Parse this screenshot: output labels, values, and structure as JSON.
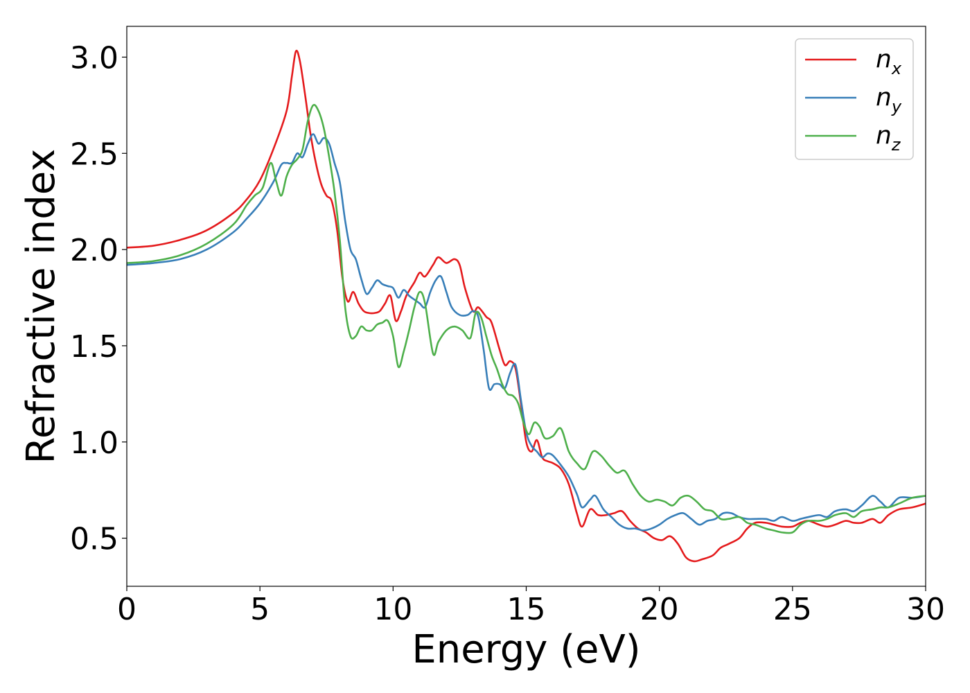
{
  "chart_data": {
    "type": "line",
    "xlabel": "Energy (eV)",
    "ylabel": "Refractive index",
    "xlim": [
      0,
      30
    ],
    "ylim": [
      0.25,
      3.16
    ],
    "xticks": [
      0,
      5,
      10,
      15,
      20,
      25,
      30
    ],
    "xtick_labels": [
      "0",
      "5",
      "10",
      "15",
      "20",
      "25",
      "30"
    ],
    "yticks": [
      0.5,
      1.0,
      1.5,
      2.0,
      2.5,
      3.0
    ],
    "ytick_labels": [
      "0.5",
      "1.0",
      "1.5",
      "2.0",
      "2.5",
      "3.0"
    ],
    "grid": false,
    "legend_position": "top-right",
    "series": [
      {
        "name": "n",
        "subscript": "x",
        "color": "#e41a1c",
        "points": [
          [
            0,
            2.01
          ],
          [
            1,
            2.02
          ],
          [
            2,
            2.05
          ],
          [
            3,
            2.1
          ],
          [
            4,
            2.19
          ],
          [
            4.5,
            2.26
          ],
          [
            5,
            2.36
          ],
          [
            5.5,
            2.52
          ],
          [
            6,
            2.72
          ],
          [
            6.2,
            2.9
          ],
          [
            6.35,
            3.03
          ],
          [
            6.5,
            2.98
          ],
          [
            6.7,
            2.8
          ],
          [
            6.9,
            2.6
          ],
          [
            7.1,
            2.45
          ],
          [
            7.3,
            2.34
          ],
          [
            7.5,
            2.28
          ],
          [
            7.7,
            2.25
          ],
          [
            7.9,
            2.1
          ],
          [
            8.1,
            1.85
          ],
          [
            8.3,
            1.73
          ],
          [
            8.5,
            1.78
          ],
          [
            8.7,
            1.72
          ],
          [
            8.9,
            1.68
          ],
          [
            9.1,
            1.67
          ],
          [
            9.3,
            1.67
          ],
          [
            9.5,
            1.68
          ],
          [
            9.7,
            1.72
          ],
          [
            9.9,
            1.76
          ],
          [
            10.1,
            1.63
          ],
          [
            10.3,
            1.68
          ],
          [
            10.5,
            1.76
          ],
          [
            10.8,
            1.83
          ],
          [
            11.0,
            1.88
          ],
          [
            11.2,
            1.86
          ],
          [
            11.5,
            1.92
          ],
          [
            11.7,
            1.96
          ],
          [
            12.0,
            1.93
          ],
          [
            12.3,
            1.95
          ],
          [
            12.5,
            1.92
          ],
          [
            12.7,
            1.8
          ],
          [
            13.0,
            1.68
          ],
          [
            13.2,
            1.7
          ],
          [
            13.5,
            1.65
          ],
          [
            13.7,
            1.62
          ],
          [
            14.0,
            1.48
          ],
          [
            14.2,
            1.4
          ],
          [
            14.4,
            1.42
          ],
          [
            14.6,
            1.38
          ],
          [
            14.8,
            1.2
          ],
          [
            15.0,
            1.0
          ],
          [
            15.2,
            0.95
          ],
          [
            15.4,
            1.01
          ],
          [
            15.6,
            0.92
          ],
          [
            15.8,
            0.9
          ],
          [
            16.0,
            0.89
          ],
          [
            16.3,
            0.86
          ],
          [
            16.6,
            0.78
          ],
          [
            16.9,
            0.63
          ],
          [
            17.1,
            0.56
          ],
          [
            17.4,
            0.65
          ],
          [
            17.7,
            0.62
          ],
          [
            18.0,
            0.62
          ],
          [
            18.3,
            0.63
          ],
          [
            18.6,
            0.64
          ],
          [
            18.9,
            0.59
          ],
          [
            19.2,
            0.55
          ],
          [
            19.5,
            0.53
          ],
          [
            19.8,
            0.5
          ],
          [
            20.1,
            0.49
          ],
          [
            20.4,
            0.51
          ],
          [
            20.7,
            0.47
          ],
          [
            21.0,
            0.4
          ],
          [
            21.3,
            0.38
          ],
          [
            21.6,
            0.39
          ],
          [
            22.0,
            0.41
          ],
          [
            22.3,
            0.45
          ],
          [
            22.6,
            0.47
          ],
          [
            23.0,
            0.5
          ],
          [
            23.3,
            0.55
          ],
          [
            23.6,
            0.58
          ],
          [
            24.0,
            0.58
          ],
          [
            24.3,
            0.57
          ],
          [
            24.6,
            0.56
          ],
          [
            25.0,
            0.56
          ],
          [
            25.3,
            0.58
          ],
          [
            25.6,
            0.59
          ],
          [
            26.0,
            0.57
          ],
          [
            26.3,
            0.56
          ],
          [
            26.6,
            0.57
          ],
          [
            27.0,
            0.59
          ],
          [
            27.3,
            0.58
          ],
          [
            27.6,
            0.58
          ],
          [
            28.0,
            0.6
          ],
          [
            28.3,
            0.58
          ],
          [
            28.6,
            0.62
          ],
          [
            29.0,
            0.65
          ],
          [
            29.5,
            0.66
          ],
          [
            30.0,
            0.68
          ]
        ]
      },
      {
        "name": "n",
        "subscript": "y",
        "color": "#377eb8",
        "points": [
          [
            0,
            1.92
          ],
          [
            1,
            1.93
          ],
          [
            2,
            1.95
          ],
          [
            3,
            2.0
          ],
          [
            4,
            2.09
          ],
          [
            4.5,
            2.16
          ],
          [
            5,
            2.24
          ],
          [
            5.5,
            2.35
          ],
          [
            5.8,
            2.44
          ],
          [
            6.0,
            2.45
          ],
          [
            6.2,
            2.45
          ],
          [
            6.4,
            2.5
          ],
          [
            6.6,
            2.48
          ],
          [
            6.8,
            2.55
          ],
          [
            7.0,
            2.6
          ],
          [
            7.2,
            2.55
          ],
          [
            7.4,
            2.58
          ],
          [
            7.6,
            2.55
          ],
          [
            7.8,
            2.45
          ],
          [
            8.0,
            2.35
          ],
          [
            8.2,
            2.15
          ],
          [
            8.4,
            2.0
          ],
          [
            8.6,
            1.95
          ],
          [
            8.8,
            1.85
          ],
          [
            9.0,
            1.77
          ],
          [
            9.2,
            1.8
          ],
          [
            9.4,
            1.84
          ],
          [
            9.6,
            1.82
          ],
          [
            9.8,
            1.81
          ],
          [
            10.0,
            1.8
          ],
          [
            10.2,
            1.75
          ],
          [
            10.4,
            1.79
          ],
          [
            10.6,
            1.76
          ],
          [
            10.8,
            1.74
          ],
          [
            11.0,
            1.72
          ],
          [
            11.2,
            1.7
          ],
          [
            11.4,
            1.78
          ],
          [
            11.6,
            1.84
          ],
          [
            11.8,
            1.86
          ],
          [
            12.0,
            1.78
          ],
          [
            12.2,
            1.7
          ],
          [
            12.5,
            1.66
          ],
          [
            12.8,
            1.66
          ],
          [
            13.0,
            1.68
          ],
          [
            13.2,
            1.65
          ],
          [
            13.4,
            1.48
          ],
          [
            13.6,
            1.28
          ],
          [
            13.8,
            1.3
          ],
          [
            14.0,
            1.3
          ],
          [
            14.2,
            1.28
          ],
          [
            14.4,
            1.36
          ],
          [
            14.6,
            1.4
          ],
          [
            14.8,
            1.22
          ],
          [
            15.0,
            1.05
          ],
          [
            15.2,
            0.98
          ],
          [
            15.4,
            0.95
          ],
          [
            15.6,
            0.92
          ],
          [
            15.8,
            0.94
          ],
          [
            16.0,
            0.93
          ],
          [
            16.3,
            0.88
          ],
          [
            16.6,
            0.82
          ],
          [
            16.9,
            0.73
          ],
          [
            17.1,
            0.66
          ],
          [
            17.4,
            0.7
          ],
          [
            17.6,
            0.72
          ],
          [
            17.9,
            0.65
          ],
          [
            18.2,
            0.61
          ],
          [
            18.5,
            0.57
          ],
          [
            18.8,
            0.55
          ],
          [
            19.1,
            0.55
          ],
          [
            19.4,
            0.54
          ],
          [
            19.7,
            0.55
          ],
          [
            20.0,
            0.57
          ],
          [
            20.3,
            0.6
          ],
          [
            20.6,
            0.62
          ],
          [
            20.9,
            0.63
          ],
          [
            21.2,
            0.6
          ],
          [
            21.5,
            0.57
          ],
          [
            21.8,
            0.59
          ],
          [
            22.1,
            0.6
          ],
          [
            22.4,
            0.63
          ],
          [
            22.7,
            0.63
          ],
          [
            23.0,
            0.61
          ],
          [
            23.3,
            0.6
          ],
          [
            23.6,
            0.6
          ],
          [
            24.0,
            0.6
          ],
          [
            24.3,
            0.59
          ],
          [
            24.6,
            0.61
          ],
          [
            25.0,
            0.59
          ],
          [
            25.3,
            0.6
          ],
          [
            25.6,
            0.61
          ],
          [
            26.0,
            0.62
          ],
          [
            26.3,
            0.61
          ],
          [
            26.6,
            0.64
          ],
          [
            27.0,
            0.65
          ],
          [
            27.3,
            0.64
          ],
          [
            27.6,
            0.67
          ],
          [
            28.0,
            0.72
          ],
          [
            28.3,
            0.69
          ],
          [
            28.6,
            0.66
          ],
          [
            29.0,
            0.71
          ],
          [
            29.5,
            0.71
          ],
          [
            30.0,
            0.72
          ]
        ]
      },
      {
        "name": "n",
        "subscript": "z",
        "color": "#4daf4a",
        "points": [
          [
            0,
            1.93
          ],
          [
            1,
            1.94
          ],
          [
            2,
            1.97
          ],
          [
            3,
            2.03
          ],
          [
            4,
            2.13
          ],
          [
            4.5,
            2.23
          ],
          [
            4.8,
            2.28
          ],
          [
            5.1,
            2.32
          ],
          [
            5.4,
            2.45
          ],
          [
            5.6,
            2.36
          ],
          [
            5.8,
            2.28
          ],
          [
            6.0,
            2.38
          ],
          [
            6.2,
            2.44
          ],
          [
            6.4,
            2.47
          ],
          [
            6.6,
            2.52
          ],
          [
            6.8,
            2.67
          ],
          [
            7.0,
            2.75
          ],
          [
            7.2,
            2.72
          ],
          [
            7.4,
            2.63
          ],
          [
            7.6,
            2.48
          ],
          [
            7.8,
            2.3
          ],
          [
            8.0,
            2.05
          ],
          [
            8.2,
            1.7
          ],
          [
            8.4,
            1.55
          ],
          [
            8.6,
            1.55
          ],
          [
            8.8,
            1.6
          ],
          [
            9.0,
            1.58
          ],
          [
            9.2,
            1.58
          ],
          [
            9.4,
            1.61
          ],
          [
            9.6,
            1.62
          ],
          [
            9.8,
            1.63
          ],
          [
            10.0,
            1.55
          ],
          [
            10.2,
            1.39
          ],
          [
            10.4,
            1.47
          ],
          [
            10.6,
            1.58
          ],
          [
            10.8,
            1.7
          ],
          [
            11.0,
            1.78
          ],
          [
            11.2,
            1.72
          ],
          [
            11.5,
            1.46
          ],
          [
            11.7,
            1.52
          ],
          [
            12.0,
            1.58
          ],
          [
            12.3,
            1.6
          ],
          [
            12.6,
            1.58
          ],
          [
            12.9,
            1.54
          ],
          [
            13.1,
            1.67
          ],
          [
            13.3,
            1.65
          ],
          [
            13.5,
            1.55
          ],
          [
            13.7,
            1.45
          ],
          [
            13.9,
            1.38
          ],
          [
            14.1,
            1.3
          ],
          [
            14.3,
            1.25
          ],
          [
            14.5,
            1.24
          ],
          [
            14.7,
            1.2
          ],
          [
            14.9,
            1.1
          ],
          [
            15.1,
            1.04
          ],
          [
            15.3,
            1.1
          ],
          [
            15.5,
            1.08
          ],
          [
            15.7,
            1.02
          ],
          [
            16.0,
            1.03
          ],
          [
            16.3,
            1.07
          ],
          [
            16.6,
            0.95
          ],
          [
            16.9,
            0.89
          ],
          [
            17.2,
            0.86
          ],
          [
            17.5,
            0.95
          ],
          [
            17.8,
            0.93
          ],
          [
            18.1,
            0.88
          ],
          [
            18.4,
            0.84
          ],
          [
            18.7,
            0.85
          ],
          [
            19.0,
            0.78
          ],
          [
            19.3,
            0.72
          ],
          [
            19.6,
            0.69
          ],
          [
            19.9,
            0.7
          ],
          [
            20.2,
            0.69
          ],
          [
            20.5,
            0.67
          ],
          [
            20.8,
            0.71
          ],
          [
            21.1,
            0.72
          ],
          [
            21.4,
            0.69
          ],
          [
            21.7,
            0.65
          ],
          [
            22.0,
            0.64
          ],
          [
            22.3,
            0.6
          ],
          [
            22.6,
            0.6
          ],
          [
            23.0,
            0.61
          ],
          [
            23.3,
            0.58
          ],
          [
            23.6,
            0.57
          ],
          [
            24.0,
            0.55
          ],
          [
            24.3,
            0.54
          ],
          [
            24.6,
            0.53
          ],
          [
            25.0,
            0.53
          ],
          [
            25.3,
            0.57
          ],
          [
            25.6,
            0.59
          ],
          [
            26.0,
            0.59
          ],
          [
            26.3,
            0.6
          ],
          [
            26.6,
            0.62
          ],
          [
            27.0,
            0.63
          ],
          [
            27.3,
            0.61
          ],
          [
            27.6,
            0.64
          ],
          [
            28.0,
            0.65
          ],
          [
            28.3,
            0.66
          ],
          [
            28.6,
            0.66
          ],
          [
            29.0,
            0.68
          ],
          [
            29.5,
            0.71
          ],
          [
            30.0,
            0.72
          ]
        ]
      }
    ]
  }
}
